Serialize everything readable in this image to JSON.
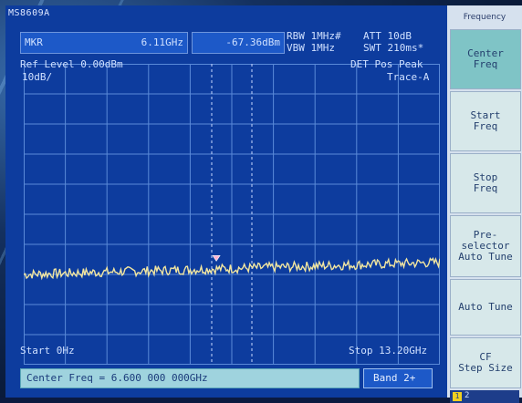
{
  "instrument": {
    "model": "MS8609A"
  },
  "marker": {
    "label": "MKR",
    "frequency": "6.11GHz",
    "level": "-67.36dBm"
  },
  "bandwidth": {
    "rbw": "RBW 1MHz#",
    "vbw": "VBW 1MHz",
    "att": "ATT 10dB",
    "swt": "SWT 210ms*"
  },
  "trace_header": {
    "ref_level": "Ref Level  0.00dBm",
    "scale": "10dB/",
    "detector": "DET  Pos Peak",
    "trace": "Trace-A"
  },
  "sweep": {
    "start": "Start 0Hz",
    "stop": "Stop 13.20GHz"
  },
  "status": {
    "message": "Center Freq = 6.600 000 000GHz",
    "band": "Band 2+"
  },
  "softkeys": {
    "title": "Frequency",
    "items": [
      {
        "label": "Center\nFreq",
        "active": true
      },
      {
        "label": "Start\nFreq",
        "active": false
      },
      {
        "label": "Stop\nFreq",
        "active": false
      },
      {
        "label": "Pre-\nselector\nAuto Tune",
        "active": false
      },
      {
        "label": "Auto Tune",
        "active": false
      },
      {
        "label": "CF\nStep Size",
        "active": false
      }
    ],
    "pages": [
      "1",
      "2"
    ]
  },
  "colors": {
    "screen_bg": "#0d3c9e",
    "grid": "#5a8ad8",
    "trace": "#f2e6a0",
    "softkey_active": "#7fc4c6"
  },
  "chart_data": {
    "type": "line",
    "x_range_ghz": [
      0,
      13.2
    ],
    "y_range_dbm": [
      -100,
      0
    ],
    "grid_divisions": [
      10,
      10
    ],
    "series": [
      {
        "name": "Trace-A",
        "noise_floor_start_dbm": -70,
        "noise_floor_end_dbm": -66
      }
    ],
    "marker_freq_ghz": 6.11,
    "marker_level_dbm": -67.36
  }
}
